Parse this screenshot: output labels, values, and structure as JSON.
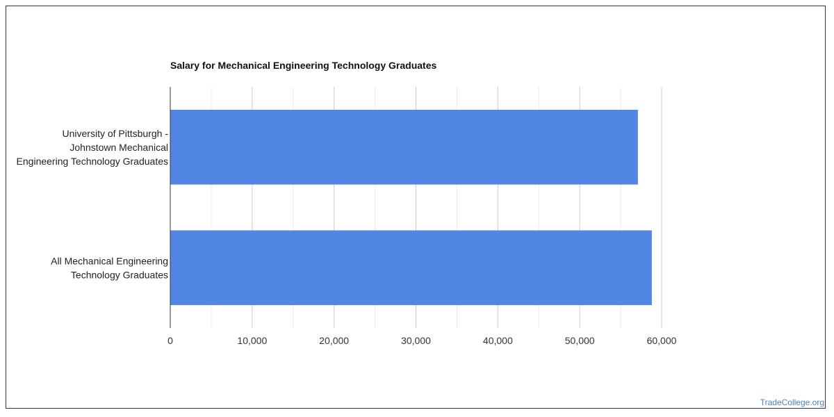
{
  "chart_data": {
    "type": "bar",
    "orientation": "horizontal",
    "title": "Salary for Mechanical Engineering Technology Graduates",
    "categories": [
      [
        "University of Pittsburgh -",
        "Johnstown Mechanical",
        "Engineering Technology Graduates"
      ],
      [
        "All Mechanical Engineering",
        "Technology Graduates"
      ]
    ],
    "values": [
      57100,
      58800
    ],
    "xlim": [
      0,
      60000
    ],
    "xticks": [
      0,
      10000,
      20000,
      30000,
      40000,
      50000,
      60000
    ],
    "xtick_labels": [
      "0",
      "10,000",
      "20,000",
      "30,000",
      "40,000",
      "50,000",
      "60,000"
    ],
    "xlabel": "",
    "ylabel": "",
    "grid": true,
    "legend": "none",
    "bar_color": "#5186e4"
  },
  "footer": {
    "credit": "TradeCollege.org"
  }
}
